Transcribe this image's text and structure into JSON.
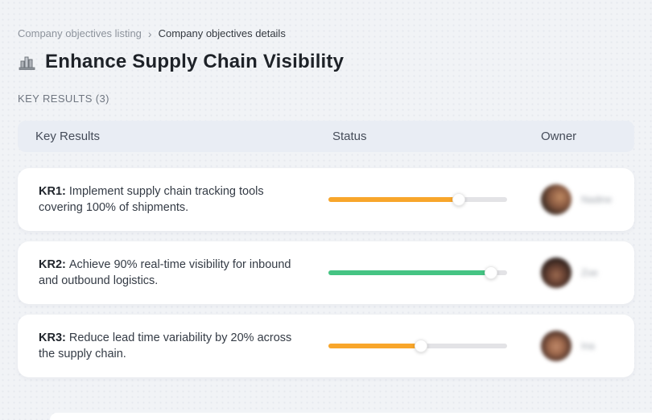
{
  "breadcrumb": {
    "separator": "›",
    "items": [
      {
        "label": "Company objectives listing"
      },
      {
        "label": "Company objectives details"
      }
    ]
  },
  "page": {
    "title": "Enhance Supply Chain Visibility",
    "title_icon": "building-bar-chart-icon"
  },
  "section": {
    "label": "KEY RESULTS (3)"
  },
  "table": {
    "headers": {
      "key_results": "Key Results",
      "status": "Status",
      "owner": "Owner"
    }
  },
  "rows": [
    {
      "kr_label": "KR1:",
      "text": "Implement supply chain tracking tools covering 100% of shipments.",
      "progress_percent": 73,
      "progress_color": "#F8A62B",
      "owner_name": "Nadine"
    },
    {
      "kr_label": "KR2:",
      "text": "Achieve 90% real-time visibility for inbound and outbound logistics.",
      "progress_percent": 91,
      "progress_color": "#45C483",
      "owner_name": "Zoe"
    },
    {
      "kr_label": "KR3:",
      "text": "Reduce lead time variability by 20% across the supply chain.",
      "progress_percent": 52,
      "progress_color": "#F8A62B",
      "owner_name": "Ina"
    }
  ],
  "colors": {
    "page_bg": "#f1f3f6",
    "table_header_bg": "#e9edf4",
    "card_bg": "#ffffff",
    "track": "#e3e3e6",
    "status_orange": "#F8A62B",
    "status_green": "#45C483"
  }
}
